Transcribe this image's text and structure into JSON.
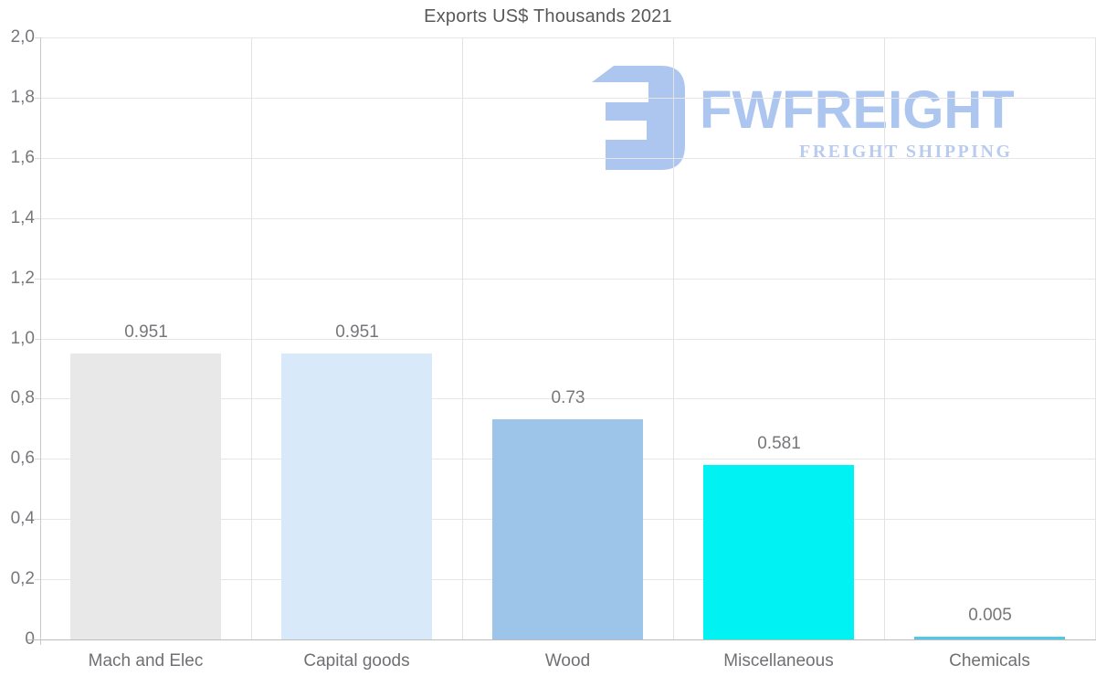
{
  "title": "Exports US$ Thousands 2021",
  "logo": {
    "brand": "FWFREIGHT",
    "tagline": "FREIGHT SHIPPING",
    "brand_color": "#a5c2ef",
    "tagline_color": "#b4c8ee",
    "glyph_color": "#a5c2ef"
  },
  "chart_data": {
    "type": "bar",
    "title": "Exports US$ Thousands 2021",
    "categories": [
      "Mach and Elec",
      "Capital goods",
      "Wood",
      "Miscellaneous",
      "Chemicals"
    ],
    "values": [
      0.951,
      0.951,
      0.73,
      0.581,
      0.005
    ],
    "value_labels": [
      "0.951",
      "0.951",
      "0.73",
      "0.581",
      "0.005"
    ],
    "bar_colors": [
      "#e8e8e8",
      "#d8e9f9",
      "#9cc5e9",
      "#00f2f2",
      "#4fc9e7"
    ],
    "xlabel": "",
    "ylabel": "",
    "ylim": [
      0,
      2
    ],
    "ytick_step": 0.2,
    "ytick_labels": [
      "2,0",
      "1,8",
      "1,6",
      "1,4",
      "1,2",
      "1,0",
      "0,8",
      "0,6",
      "0,4",
      "0,2",
      "0"
    ],
    "grid": true,
    "legend": "none",
    "text_color": "#76777a",
    "grid_color": "#e6e6e6"
  }
}
